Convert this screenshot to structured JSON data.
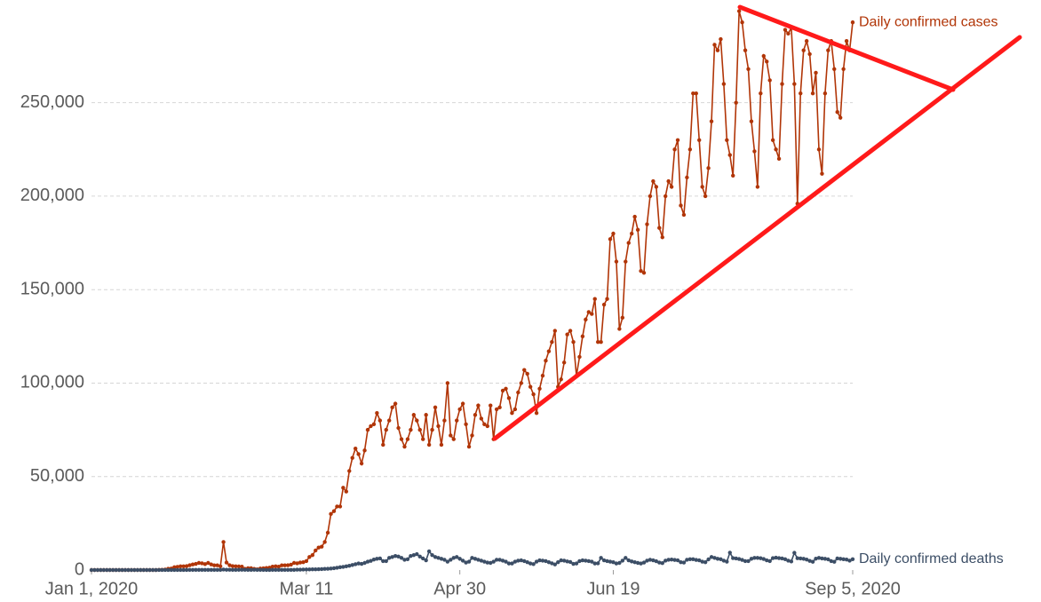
{
  "chart_data": {
    "type": "line",
    "x": [
      "2020-01-01",
      "2020-01-02",
      "2020-01-03",
      "2020-01-04",
      "2020-01-05",
      "2020-01-06",
      "2020-01-07",
      "2020-01-08",
      "2020-01-09",
      "2020-01-10",
      "2020-01-11",
      "2020-01-12",
      "2020-01-13",
      "2020-01-14",
      "2020-01-15",
      "2020-01-16",
      "2020-01-17",
      "2020-01-18",
      "2020-01-19",
      "2020-01-20",
      "2020-01-21",
      "2020-01-22",
      "2020-01-23",
      "2020-01-24",
      "2020-01-25",
      "2020-01-26",
      "2020-01-27",
      "2020-01-28",
      "2020-01-29",
      "2020-01-30",
      "2020-01-31",
      "2020-02-01",
      "2020-02-02",
      "2020-02-03",
      "2020-02-04",
      "2020-02-05",
      "2020-02-06",
      "2020-02-07",
      "2020-02-08",
      "2020-02-09",
      "2020-02-10",
      "2020-02-11",
      "2020-02-12",
      "2020-02-13",
      "2020-02-14",
      "2020-02-15",
      "2020-02-16",
      "2020-02-17",
      "2020-02-18",
      "2020-02-19",
      "2020-02-20",
      "2020-02-21",
      "2020-02-22",
      "2020-02-23",
      "2020-02-24",
      "2020-02-25",
      "2020-02-26",
      "2020-02-27",
      "2020-02-28",
      "2020-02-29",
      "2020-03-01",
      "2020-03-02",
      "2020-03-03",
      "2020-03-04",
      "2020-03-05",
      "2020-03-06",
      "2020-03-07",
      "2020-03-08",
      "2020-03-09",
      "2020-03-10",
      "2020-03-11",
      "2020-03-12",
      "2020-03-13",
      "2020-03-14",
      "2020-03-15",
      "2020-03-16",
      "2020-03-17",
      "2020-03-18",
      "2020-03-19",
      "2020-03-20",
      "2020-03-21",
      "2020-03-22",
      "2020-03-23",
      "2020-03-24",
      "2020-03-25",
      "2020-03-26",
      "2020-03-27",
      "2020-03-28",
      "2020-03-29",
      "2020-03-30",
      "2020-03-31",
      "2020-04-01",
      "2020-04-02",
      "2020-04-03",
      "2020-04-04",
      "2020-04-05",
      "2020-04-06",
      "2020-04-07",
      "2020-04-08",
      "2020-04-09",
      "2020-04-10",
      "2020-04-11",
      "2020-04-12",
      "2020-04-13",
      "2020-04-14",
      "2020-04-15",
      "2020-04-16",
      "2020-04-17",
      "2020-04-18",
      "2020-04-19",
      "2020-04-20",
      "2020-04-21",
      "2020-04-22",
      "2020-04-23",
      "2020-04-24",
      "2020-04-25",
      "2020-04-26",
      "2020-04-27",
      "2020-04-28",
      "2020-04-29",
      "2020-04-30",
      "2020-05-01",
      "2020-05-02",
      "2020-05-03",
      "2020-05-04",
      "2020-05-05",
      "2020-05-06",
      "2020-05-07",
      "2020-05-08",
      "2020-05-09",
      "2020-05-10",
      "2020-05-11",
      "2020-05-12",
      "2020-05-13",
      "2020-05-14",
      "2020-05-15",
      "2020-05-16",
      "2020-05-17",
      "2020-05-18",
      "2020-05-19",
      "2020-05-20",
      "2020-05-21",
      "2020-05-22",
      "2020-05-23",
      "2020-05-24",
      "2020-05-25",
      "2020-05-26",
      "2020-05-27",
      "2020-05-28",
      "2020-05-29",
      "2020-05-30",
      "2020-05-31",
      "2020-06-01",
      "2020-06-02",
      "2020-06-03",
      "2020-06-04",
      "2020-06-05",
      "2020-06-06",
      "2020-06-07",
      "2020-06-08",
      "2020-06-09",
      "2020-06-10",
      "2020-06-11",
      "2020-06-12",
      "2020-06-13",
      "2020-06-14",
      "2020-06-15",
      "2020-06-16",
      "2020-06-17",
      "2020-06-18",
      "2020-06-19",
      "2020-06-20",
      "2020-06-21",
      "2020-06-22",
      "2020-06-23",
      "2020-06-24",
      "2020-06-25",
      "2020-06-26",
      "2020-06-27",
      "2020-06-28",
      "2020-06-29",
      "2020-06-30",
      "2020-07-01",
      "2020-07-02",
      "2020-07-03",
      "2020-07-04",
      "2020-07-05",
      "2020-07-06",
      "2020-07-07",
      "2020-07-08",
      "2020-07-09",
      "2020-07-10",
      "2020-07-11",
      "2020-07-12",
      "2020-07-13",
      "2020-07-14",
      "2020-07-15",
      "2020-07-16",
      "2020-07-17",
      "2020-07-18",
      "2020-07-19",
      "2020-07-20",
      "2020-07-21",
      "2020-07-22",
      "2020-07-23",
      "2020-07-24",
      "2020-07-25",
      "2020-07-26",
      "2020-07-27",
      "2020-07-28",
      "2020-07-29",
      "2020-07-30",
      "2020-07-31",
      "2020-08-01",
      "2020-08-02",
      "2020-08-03",
      "2020-08-04",
      "2020-08-05",
      "2020-08-06",
      "2020-08-07",
      "2020-08-08",
      "2020-08-09",
      "2020-08-10",
      "2020-08-11",
      "2020-08-12",
      "2020-08-13",
      "2020-08-14",
      "2020-08-15",
      "2020-08-16",
      "2020-08-17",
      "2020-08-18",
      "2020-08-19",
      "2020-08-20",
      "2020-08-21",
      "2020-08-22",
      "2020-08-23",
      "2020-08-24",
      "2020-08-25",
      "2020-08-26",
      "2020-08-27",
      "2020-08-28",
      "2020-08-29",
      "2020-08-30",
      "2020-08-31",
      "2020-09-01",
      "2020-09-02",
      "2020-09-03",
      "2020-09-04",
      "2020-09-05"
    ],
    "series": [
      {
        "name": "Daily confirmed cases",
        "color": "#b13507",
        "values": [
          0,
          0,
          0,
          0,
          0,
          0,
          0,
          0,
          0,
          0,
          0,
          0,
          0,
          0,
          0,
          0,
          0,
          0,
          0,
          0,
          0,
          0,
          100,
          150,
          250,
          700,
          800,
          1500,
          1700,
          2000,
          2000,
          2100,
          2600,
          3000,
          3300,
          3800,
          3600,
          3200,
          3800,
          3000,
          2500,
          2500,
          2000,
          15000,
          4000,
          2600,
          2100,
          2000,
          1900,
          1800,
          600,
          1000,
          1000,
          600,
          400,
          800,
          900,
          1100,
          1300,
          1800,
          2000,
          1800,
          2500,
          2500,
          2600,
          2900,
          3800,
          3600,
          4000,
          4200,
          4800,
          7000,
          8000,
          10500,
          12000,
          12500,
          15000,
          20000,
          30000,
          31500,
          34000,
          34000,
          44000,
          42000,
          53000,
          60000,
          65000,
          62000,
          57000,
          64000,
          75000,
          77000,
          78000,
          84000,
          80000,
          67000,
          75000,
          80000,
          87000,
          89000,
          76000,
          70000,
          66000,
          70000,
          75000,
          83000,
          80000,
          75000,
          70000,
          83000,
          67000,
          75000,
          87000,
          77000,
          67000,
          80000,
          100000,
          72000,
          70000,
          80000,
          86000,
          89000,
          78000,
          66000,
          72000,
          83000,
          88000,
          81000,
          78000,
          77000,
          88000,
          70000,
          86000,
          87000,
          96000,
          97000,
          92000,
          84000,
          86000,
          95000,
          100000,
          107000,
          105000,
          98000,
          94000,
          84000,
          97000,
          104000,
          112000,
          117000,
          122000,
          128000,
          98000,
          102000,
          111000,
          126000,
          128000,
          122000,
          104000,
          114000,
          125000,
          134000,
          138000,
          137000,
          145000,
          122000,
          122000,
          142000,
          145000,
          177000,
          180000,
          165000,
          129000,
          135000,
          165000,
          175000,
          180000,
          189000,
          182000,
          160000,
          159000,
          185000,
          200000,
          208000,
          205000,
          183000,
          178000,
          200000,
          208000,
          205000,
          225000,
          230000,
          195000,
          190000,
          210000,
          225000,
          255000,
          255000,
          230000,
          205000,
          200000,
          215000,
          240000,
          281000,
          278000,
          284000,
          260000,
          230000,
          222000,
          211000,
          250000,
          299000,
          293000,
          278000,
          268000,
          240000,
          224000,
          205000,
          255000,
          275000,
          272000,
          262000,
          230000,
          225000,
          220000,
          260000,
          289000,
          287000,
          290000,
          260000,
          196000,
          255000,
          278000,
          283000,
          276000,
          255000,
          266000,
          225000,
          212000,
          255000,
          278000,
          283000,
          268000,
          245000,
          242000,
          268000,
          283000,
          278000,
          293000
        ]
      },
      {
        "name": "Daily confirmed deaths",
        "color": "#3c4e66",
        "values": [
          0,
          0,
          0,
          0,
          0,
          0,
          0,
          0,
          0,
          0,
          0,
          0,
          0,
          0,
          0,
          0,
          0,
          0,
          0,
          0,
          0,
          0,
          10,
          20,
          20,
          30,
          30,
          40,
          40,
          45,
          50,
          55,
          60,
          65,
          70,
          75,
          80,
          85,
          90,
          95,
          100,
          110,
          100,
          250,
          140,
          140,
          110,
          100,
          120,
          130,
          120,
          110,
          100,
          150,
          80,
          70,
          60,
          50,
          50,
          70,
          70,
          70,
          80,
          90,
          100,
          110,
          100,
          200,
          200,
          250,
          300,
          350,
          400,
          400,
          450,
          500,
          600,
          700,
          800,
          1000,
          1200,
          1500,
          1700,
          2000,
          2300,
          2700,
          3100,
          3500,
          3300,
          3800,
          4500,
          4900,
          5600,
          6000,
          6200,
          4800,
          4800,
          6500,
          7000,
          7500,
          7200,
          6500,
          5500,
          5800,
          7500,
          8000,
          8500,
          7200,
          6200,
          5200,
          10000,
          8000,
          7000,
          6500,
          6000,
          5500,
          4500,
          5500,
          6500,
          7000,
          6000,
          5000,
          4000,
          4500,
          6500,
          6000,
          5500,
          5000,
          4500,
          4000,
          3800,
          4500,
          5500,
          5500,
          5000,
          4500,
          3500,
          3500,
          4500,
          5000,
          5200,
          4800,
          4200,
          3500,
          3200,
          4500,
          5200,
          5000,
          4800,
          4200,
          3600,
          3000,
          4200,
          5200,
          5000,
          4600,
          4300,
          3300,
          3500,
          4800,
          5200,
          5000,
          4800,
          4500,
          3500,
          3600,
          6500,
          5200,
          4800,
          4500,
          4200,
          3500,
          3800,
          5000,
          6500,
          5200,
          4600,
          4200,
          3800,
          3500,
          4000,
          5000,
          5500,
          5200,
          4700,
          4000,
          3700,
          5000,
          5500,
          5600,
          5400,
          5200,
          4200,
          4000,
          5500,
          5800,
          5800,
          5400,
          5200,
          4500,
          4200,
          5700,
          7000,
          6500,
          6000,
          5800,
          5000,
          4500,
          9300,
          6400,
          6200,
          5900,
          5400,
          4800,
          4800,
          6000,
          6500,
          6500,
          6300,
          5900,
          5200,
          4800,
          6400,
          6600,
          6400,
          6200,
          5800,
          5000,
          4600,
          9200,
          6300,
          6200,
          6000,
          5600,
          4900,
          4400,
          6100,
          6500,
          6200,
          6000,
          5700,
          4800,
          4400,
          6200,
          6000,
          5800,
          5600,
          5000,
          5800
        ]
      }
    ],
    "xlim": [
      "2020-01-01",
      "2020-09-05"
    ],
    "xticks": [
      {
        "value": "2020-01-01",
        "label": "Jan 1, 2020"
      },
      {
        "value": "2020-03-11",
        "label": "Mar 11"
      },
      {
        "value": "2020-04-30",
        "label": "Apr 30"
      },
      {
        "value": "2020-06-19",
        "label": "Jun 19"
      },
      {
        "value": "2020-09-05",
        "label": "Sep 5, 2020"
      }
    ],
    "ylim": [
      0,
      300000
    ],
    "yticks": [
      0,
      {
        "value": 50000,
        "label": "50,000"
      },
      {
        "value": 100000,
        "label": "100,000"
      },
      {
        "value": 150000,
        "label": "150,000"
      },
      {
        "value": 200000,
        "label": "200,000"
      },
      {
        "value": 250000,
        "label": "250,000"
      }
    ],
    "grid": true
  }
}
